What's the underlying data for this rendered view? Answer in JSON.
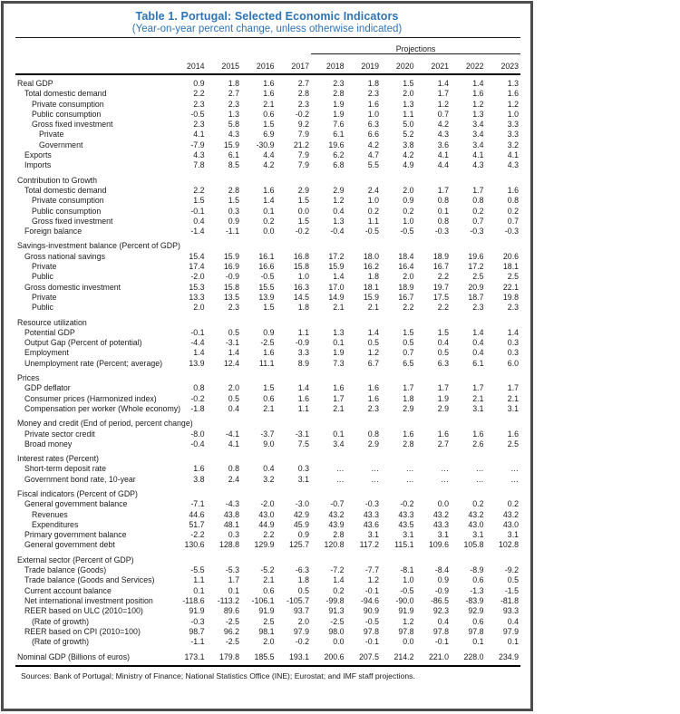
{
  "colors": {
    "title_blue": "#2E74B5",
    "frame_border": "#4d4d4d",
    "rule_black": "#000000"
  },
  "table": {
    "title": "Table 1. Portugal: Selected Economic Indicators",
    "subtitle": "(Year-on-year percent change, unless otherwise indicated)",
    "projections_label": "Projections",
    "projection_start_index": 4,
    "years": [
      "2014",
      "2015",
      "2016",
      "2017",
      "2018",
      "2019",
      "2020",
      "2021",
      "2022",
      "2023"
    ],
    "rows": [
      {
        "type": "data",
        "indent": 0,
        "label": "Real GDP",
        "values": [
          "0.9",
          "1.8",
          "1.6",
          "2.7",
          "2.3",
          "1.8",
          "1.5",
          "1.4",
          "1.4",
          "1.3"
        ]
      },
      {
        "type": "data",
        "indent": 1,
        "label": "Total domestic demand",
        "values": [
          "2.2",
          "2.7",
          "1.6",
          "2.8",
          "2.8",
          "2.3",
          "2.0",
          "1.7",
          "1.6",
          "1.6"
        ]
      },
      {
        "type": "data",
        "indent": 2,
        "label": "Private consumption",
        "values": [
          "2.3",
          "2.3",
          "2.1",
          "2.3",
          "1.9",
          "1.6",
          "1.3",
          "1.2",
          "1.2",
          "1.2"
        ]
      },
      {
        "type": "data",
        "indent": 2,
        "label": "Public consumption",
        "values": [
          "-0.5",
          "1.3",
          "0.6",
          "-0.2",
          "1.9",
          "1.0",
          "1.1",
          "0.7",
          "1.3",
          "1.0"
        ]
      },
      {
        "type": "data",
        "indent": 2,
        "label": "Gross fixed investment",
        "values": [
          "2.3",
          "5.8",
          "1.5",
          "9.2",
          "7.6",
          "6.3",
          "5.0",
          "4.2",
          "3.4",
          "3.3"
        ]
      },
      {
        "type": "data",
        "indent": 3,
        "label": "Private",
        "values": [
          "4.1",
          "4.3",
          "6.9",
          "7.9",
          "6.1",
          "6.6",
          "5.2",
          "4.3",
          "3.4",
          "3.3"
        ]
      },
      {
        "type": "data",
        "indent": 3,
        "label": "Government",
        "values": [
          "-7.9",
          "15.9",
          "-30.9",
          "21.2",
          "19.6",
          "4.2",
          "3.8",
          "3.6",
          "3.4",
          "3.2"
        ]
      },
      {
        "type": "data",
        "indent": 1,
        "label": "Exports",
        "values": [
          "4.3",
          "6.1",
          "4.4",
          "7.9",
          "6.2",
          "4.7",
          "4.2",
          "4.1",
          "4.1",
          "4.1"
        ]
      },
      {
        "type": "data",
        "indent": 1,
        "label": "Imports",
        "values": [
          "7.8",
          "8.5",
          "4.2",
          "7.9",
          "6.8",
          "5.5",
          "4.9",
          "4.4",
          "4.3",
          "4.3"
        ]
      },
      {
        "type": "section",
        "indent": 0,
        "label": "Contribution to Growth",
        "values": []
      },
      {
        "type": "data",
        "indent": 1,
        "label": "Total domestic demand",
        "values": [
          "2.2",
          "2.8",
          "1.6",
          "2.9",
          "2.9",
          "2.4",
          "2.0",
          "1.7",
          "1.7",
          "1.6"
        ]
      },
      {
        "type": "data",
        "indent": 2,
        "label": "Private consumption",
        "values": [
          "1.5",
          "1.5",
          "1.4",
          "1.5",
          "1.2",
          "1.0",
          "0.9",
          "0.8",
          "0.8",
          "0.8"
        ]
      },
      {
        "type": "data",
        "indent": 2,
        "label": "Public consumption",
        "values": [
          "-0.1",
          "0.3",
          "0.1",
          "0.0",
          "0.4",
          "0.2",
          "0.2",
          "0.1",
          "0.2",
          "0.2"
        ]
      },
      {
        "type": "data",
        "indent": 2,
        "label": "Gross fixed investment",
        "values": [
          "0.4",
          "0.9",
          "0.2",
          "1.5",
          "1.3",
          "1.1",
          "1.0",
          "0.8",
          "0.7",
          "0.7"
        ]
      },
      {
        "type": "data",
        "indent": 1,
        "label": "Foreign balance",
        "values": [
          "-1.4",
          "-1.1",
          "0.0",
          "-0.2",
          "-0.4",
          "-0.5",
          "-0.5",
          "-0.3",
          "-0.3",
          "-0.3"
        ]
      },
      {
        "type": "section",
        "indent": 0,
        "label": "Savings-investment balance (Percent of GDP)",
        "values": []
      },
      {
        "type": "data",
        "indent": 1,
        "label": "Gross national savings",
        "values": [
          "15.4",
          "15.9",
          "16.1",
          "16.8",
          "17.2",
          "18.0",
          "18.4",
          "18.9",
          "19.6",
          "20.6"
        ]
      },
      {
        "type": "data",
        "indent": 2,
        "label": "Private",
        "values": [
          "17.4",
          "16.9",
          "16.6",
          "15.8",
          "15.9",
          "16.2",
          "16.4",
          "16.7",
          "17.2",
          "18.1"
        ]
      },
      {
        "type": "data",
        "indent": 2,
        "label": "Public",
        "values": [
          "-2.0",
          "-0.9",
          "-0.5",
          "1.0",
          "1.4",
          "1.8",
          "2.0",
          "2.2",
          "2.5",
          "2.5"
        ]
      },
      {
        "type": "data",
        "indent": 1,
        "label": "Gross domestic investment",
        "values": [
          "15.3",
          "15.8",
          "15.5",
          "16.3",
          "17.0",
          "18.1",
          "18.9",
          "19.7",
          "20.9",
          "22.1"
        ]
      },
      {
        "type": "data",
        "indent": 2,
        "label": "Private",
        "values": [
          "13.3",
          "13.5",
          "13.9",
          "14.5",
          "14.9",
          "15.9",
          "16.7",
          "17.5",
          "18.7",
          "19.8"
        ]
      },
      {
        "type": "data",
        "indent": 2,
        "label": "Public",
        "values": [
          "2.0",
          "2.3",
          "1.5",
          "1.8",
          "2.1",
          "2.1",
          "2.2",
          "2.2",
          "2.3",
          "2.3"
        ]
      },
      {
        "type": "section",
        "indent": 0,
        "label": "Resource utilization",
        "values": []
      },
      {
        "type": "data",
        "indent": 1,
        "label": "Potential GDP",
        "values": [
          "-0.1",
          "0.5",
          "0.9",
          "1.1",
          "1.3",
          "1.4",
          "1.5",
          "1.5",
          "1.4",
          "1.4"
        ]
      },
      {
        "type": "data",
        "indent": 1,
        "label": "Output Gap (Percent of potential)",
        "values": [
          "-4.4",
          "-3.1",
          "-2.5",
          "-0.9",
          "0.1",
          "0.5",
          "0.5",
          "0.4",
          "0.4",
          "0.3"
        ]
      },
      {
        "type": "data",
        "indent": 1,
        "label": "Employment",
        "values": [
          "1.4",
          "1.4",
          "1.6",
          "3.3",
          "1.9",
          "1.2",
          "0.7",
          "0.5",
          "0.4",
          "0.3"
        ]
      },
      {
        "type": "data",
        "indent": 1,
        "label": "Unemployment rate (Percent; average)",
        "values": [
          "13.9",
          "12.4",
          "11.1",
          "8.9",
          "7.3",
          "6.7",
          "6.5",
          "6.3",
          "6.1",
          "6.0"
        ]
      },
      {
        "type": "section",
        "indent": 0,
        "label": "Prices",
        "values": []
      },
      {
        "type": "data",
        "indent": 1,
        "label": "GDP deflator",
        "values": [
          "0.8",
          "2.0",
          "1.5",
          "1.4",
          "1.6",
          "1.6",
          "1.7",
          "1.7",
          "1.7",
          "1.7"
        ]
      },
      {
        "type": "data",
        "indent": 1,
        "label": "Consumer prices (Harmonized index)",
        "values": [
          "-0.2",
          "0.5",
          "0.6",
          "1.6",
          "1.7",
          "1.6",
          "1.8",
          "1.9",
          "2.1",
          "2.1"
        ]
      },
      {
        "type": "data",
        "indent": 1,
        "label": "Compensation per worker (Whole economy)",
        "values": [
          "-1.8",
          "0.4",
          "2.1",
          "1.1",
          "2.1",
          "2.3",
          "2.9",
          "2.9",
          "3.1",
          "3.1"
        ]
      },
      {
        "type": "section",
        "indent": 0,
        "label": "Money and credit (End of period, percent change)",
        "values": []
      },
      {
        "type": "data",
        "indent": 1,
        "label": "Private sector credit",
        "values": [
          "-8.0",
          "-4.1",
          "-3.7",
          "-3.1",
          "0.1",
          "0.8",
          "1.6",
          "1.6",
          "1.6",
          "1.6"
        ]
      },
      {
        "type": "data",
        "indent": 1,
        "label": "Broad money",
        "values": [
          "-0.4",
          "4.1",
          "9.0",
          "7.5",
          "3.4",
          "2.9",
          "2.8",
          "2.7",
          "2.6",
          "2.5"
        ]
      },
      {
        "type": "section",
        "indent": 0,
        "label": "Interest rates (Percent)",
        "values": []
      },
      {
        "type": "data",
        "indent": 1,
        "label": "Short-term deposit rate",
        "values": [
          "1.6",
          "0.8",
          "0.4",
          "0.3",
          "…",
          "…",
          "…",
          "…",
          "…",
          "…"
        ]
      },
      {
        "type": "data",
        "indent": 1,
        "label": "Government bond rate, 10-year",
        "values": [
          "3.8",
          "2.4",
          "3.2",
          "3.1",
          "…",
          "…",
          "…",
          "…",
          "…",
          "…"
        ]
      },
      {
        "type": "section",
        "indent": 0,
        "label": "Fiscal indicators (Percent of GDP)",
        "values": []
      },
      {
        "type": "data",
        "indent": 1,
        "label": "General government balance",
        "values": [
          "-7.1",
          "-4.3",
          "-2.0",
          "-3.0",
          "-0.7",
          "-0.3",
          "-0.2",
          "0.0",
          "0.2",
          "0.2"
        ]
      },
      {
        "type": "data",
        "indent": 2,
        "label": "Revenues",
        "values": [
          "44.6",
          "43.8",
          "43.0",
          "42.9",
          "43.2",
          "43.3",
          "43.3",
          "43.2",
          "43.2",
          "43.2"
        ]
      },
      {
        "type": "data",
        "indent": 2,
        "label": "Expenditures",
        "values": [
          "51.7",
          "48.1",
          "44.9",
          "45.9",
          "43.9",
          "43.6",
          "43.5",
          "43.3",
          "43.0",
          "43.0"
        ]
      },
      {
        "type": "data",
        "indent": 1,
        "label": "Primary government balance",
        "values": [
          "-2.2",
          "0.3",
          "2.2",
          "0.9",
          "2.8",
          "3.1",
          "3.1",
          "3.1",
          "3.1",
          "3.1"
        ]
      },
      {
        "type": "data",
        "indent": 1,
        "label": "General government debt",
        "values": [
          "130.6",
          "128.8",
          "129.9",
          "125.7",
          "120.8",
          "117.2",
          "115.1",
          "109.6",
          "105.8",
          "102.8"
        ]
      },
      {
        "type": "section",
        "indent": 0,
        "label": "External sector (Percent of GDP)",
        "values": []
      },
      {
        "type": "data",
        "indent": 1,
        "label": "Trade balance (Goods)",
        "values": [
          "-5.5",
          "-5.3",
          "-5.2",
          "-6.3",
          "-7.2",
          "-7.7",
          "-8.1",
          "-8.4",
          "-8.9",
          "-9.2"
        ]
      },
      {
        "type": "data",
        "indent": 1,
        "label": "Trade balance (Goods and Services)",
        "values": [
          "1.1",
          "1.7",
          "2.1",
          "1.8",
          "1.4",
          "1.2",
          "1.0",
          "0.9",
          "0.6",
          "0.5"
        ]
      },
      {
        "type": "data",
        "indent": 1,
        "label": "Current account balance",
        "values": [
          "0.1",
          "0.1",
          "0.6",
          "0.5",
          "0.2",
          "-0.1",
          "-0.5",
          "-0.9",
          "-1.3",
          "-1.5"
        ]
      },
      {
        "type": "data",
        "indent": 1,
        "label": "Net international investment position",
        "values": [
          "-118.6",
          "-113.2",
          "-106.1",
          "-105.7",
          "-99.8",
          "-94.6",
          "-90.0",
          "-86.5",
          "-83.9",
          "-81.8"
        ]
      },
      {
        "type": "data",
        "indent": 1,
        "label": "REER based on ULC (2010=100)",
        "values": [
          "91.9",
          "89.6",
          "91.9",
          "93.7",
          "91.3",
          "90.9",
          "91.9",
          "92.3",
          "92.9",
          "93.3"
        ]
      },
      {
        "type": "data",
        "indent": 2,
        "label": "(Rate of growth)",
        "values": [
          "-0.3",
          "-2.5",
          "2.5",
          "2.0",
          "-2.5",
          "-0.5",
          "1.2",
          "0.4",
          "0.6",
          "0.4"
        ]
      },
      {
        "type": "data",
        "indent": 1,
        "label": "REER based on CPI (2010=100)",
        "values": [
          "98.7",
          "96.2",
          "98.1",
          "97.9",
          "98.0",
          "97.8",
          "97.8",
          "97.8",
          "97.8",
          "97.9"
        ]
      },
      {
        "type": "data",
        "indent": 2,
        "label": "(Rate of growth)",
        "values": [
          "-1.1",
          "-2.5",
          "2.0",
          "-0.2",
          "0.0",
          "-0.1",
          "0.0",
          "-0.1",
          "0.1",
          "0.1"
        ]
      },
      {
        "type": "data",
        "indent": 0,
        "label": "Nominal GDP (Billions of euros)",
        "gap_above": true,
        "values": [
          "173.1",
          "179.8",
          "185.5",
          "193.1",
          "200.6",
          "207.5",
          "214.2",
          "221.0",
          "228.0",
          "234.9"
        ]
      }
    ],
    "source_note": "Sources: Bank of Portugal; Ministry of Finance; National Statistics Office (INE); Eurostat; and IMF staff projections."
  }
}
